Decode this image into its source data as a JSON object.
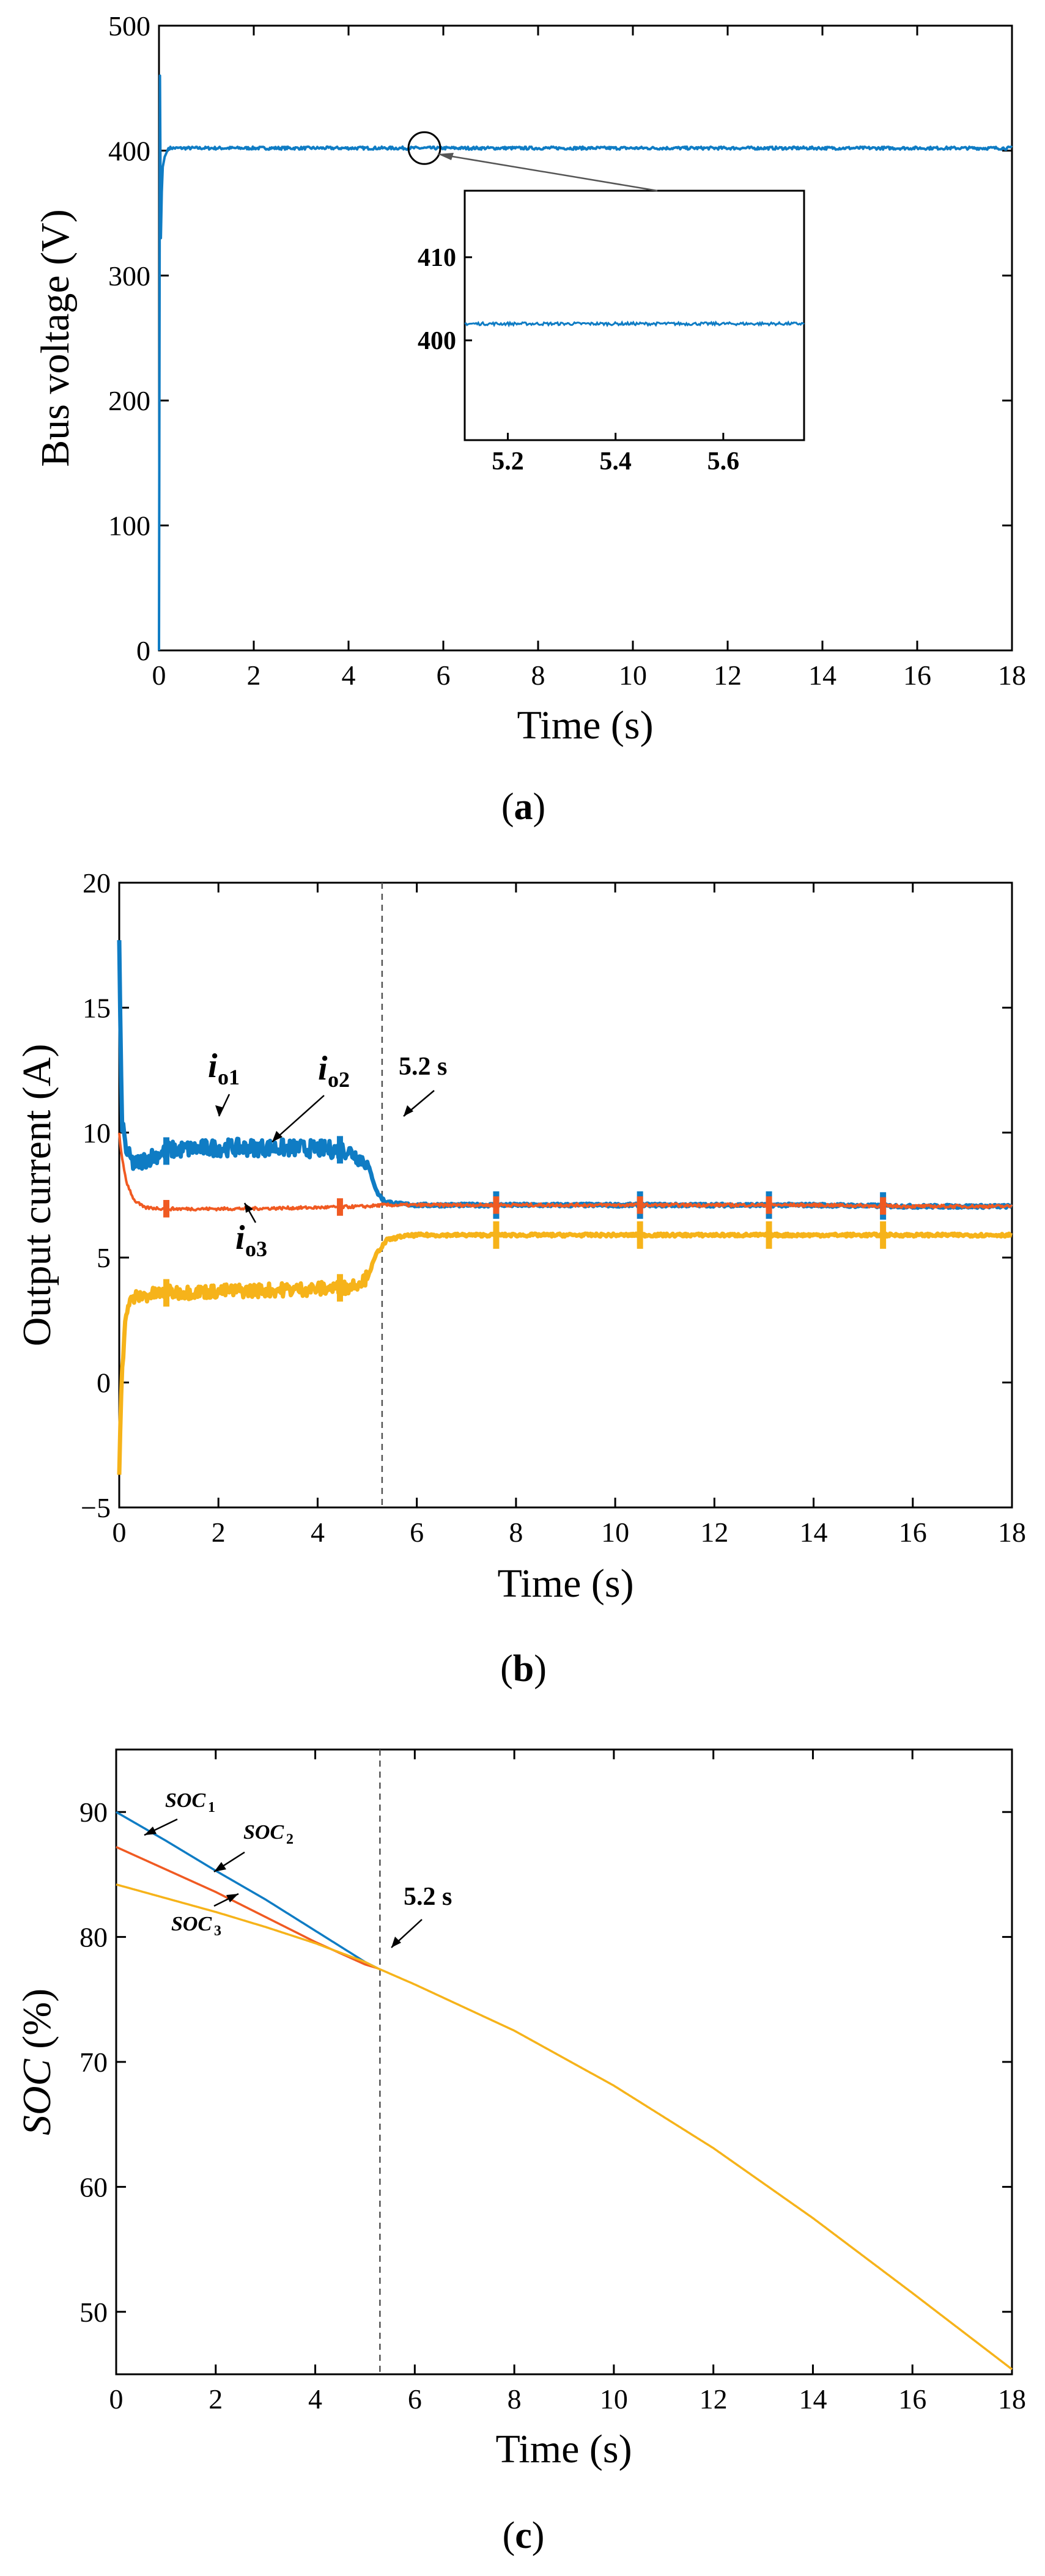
{
  "colors": {
    "blue": "#0f7cc4",
    "orange": "#f05a22",
    "yellow": "#f6b31a",
    "axis": "#000000",
    "dashed": "#555555"
  },
  "chart_data": [
    {
      "type": "line",
      "panel_label": "(a)",
      "xlabel": "Time (s)",
      "ylabel": "Bus voltage (V)",
      "xlim": [
        0,
        18
      ],
      "ylim": [
        0,
        500
      ],
      "xticks": [
        0,
        2,
        4,
        6,
        8,
        10,
        12,
        14,
        16,
        18
      ],
      "yticks": [
        0,
        100,
        200,
        300,
        400,
        500
      ],
      "series": [
        {
          "x": [
            0,
            0.02,
            0.04,
            0.07,
            0.12,
            0.2,
            0.5,
            1,
            5,
            10,
            18
          ],
          "y": [
            0,
            460,
            330,
            385,
            395,
            402,
            402,
            402,
            402,
            402,
            402
          ]
        }
      ],
      "inset": {
        "xlim": [
          5.12,
          5.75
        ],
        "ylim": [
          388,
          418
        ],
        "xticks": [
          5.2,
          5.4,
          5.6
        ],
        "yticks": [
          400,
          410
        ],
        "value": 402,
        "zoom_point": {
          "x": 5.6,
          "y": 402
        }
      }
    },
    {
      "type": "line",
      "panel_label": "(b)",
      "xlabel": "Time (s)",
      "ylabel": "Output current (A)",
      "xlim": [
        0,
        18
      ],
      "ylim": [
        -5,
        20
      ],
      "xticks": [
        0,
        2,
        4,
        6,
        8,
        10,
        12,
        14,
        16,
        18
      ],
      "yticks": [
        -5,
        0,
        5,
        10,
        15,
        20
      ],
      "vline": 5.3,
      "annotations": {
        "i1": "i",
        "i1_sub": "o1",
        "i2": "i",
        "i2_sub": "o2",
        "i3": "i",
        "i3_sub": "o3",
        "time": "5.2 s"
      },
      "series": [
        {
          "x": [
            0,
            0.05,
            0.15,
            0.3,
            0.6,
            1,
            2,
            3,
            4,
            4.6,
            5,
            5.2,
            5.35,
            5.6,
            6,
            8,
            10,
            12,
            14,
            16,
            18
          ],
          "y": [
            17.5,
            10.5,
            9.2,
            8.7,
            9.0,
            9.3,
            9.4,
            9.4,
            9.35,
            9.3,
            8.8,
            7.6,
            7.25,
            7.15,
            7.1,
            7.1,
            7.1,
            7.1,
            7.1,
            7.05,
            7.05
          ]
        },
        {
          "x": [
            0,
            0.05,
            0.15,
            0.3,
            0.5,
            1,
            2,
            3,
            4,
            5,
            5.3,
            6,
            8,
            10,
            12,
            14,
            16,
            18
          ],
          "y": [
            10.0,
            9.0,
            8.0,
            7.3,
            7.0,
            6.95,
            6.95,
            6.97,
            7.0,
            7.05,
            7.1,
            7.1,
            7.1,
            7.1,
            7.1,
            7.1,
            7.05,
            7.05
          ]
        },
        {
          "x": [
            0,
            0.05,
            0.15,
            0.3,
            0.6,
            1,
            2,
            3,
            4,
            4.6,
            5,
            5.2,
            5.4,
            5.7,
            6,
            8,
            10,
            12,
            14,
            16,
            18
          ],
          "y": [
            -3.5,
            0.5,
            3.0,
            3.4,
            3.5,
            3.6,
            3.65,
            3.7,
            3.75,
            3.8,
            4.2,
            5.2,
            5.7,
            5.85,
            5.9,
            5.9,
            5.9,
            5.9,
            5.9,
            5.9,
            5.9
          ]
        }
      ]
    },
    {
      "type": "line",
      "panel_label": "(c)",
      "xlabel": "Time (s)",
      "ylabel_main": "SOC",
      "ylabel_unit": " (%)",
      "xlim": [
        0,
        18
      ],
      "ylim": [
        45,
        95
      ],
      "xticks": [
        0,
        2,
        4,
        6,
        8,
        10,
        12,
        14,
        16,
        18
      ],
      "yticks": [
        50,
        60,
        70,
        80,
        90
      ],
      "vline": 5.3,
      "annotations": {
        "s1": "SOC",
        "s1_sub": "1",
        "s2": "SOC",
        "s2_sub": "2",
        "s3": "SOC",
        "s3_sub": "3",
        "time": "5.2 s"
      },
      "series": [
        {
          "x": [
            0,
            1,
            2,
            3,
            4,
            5,
            5.25
          ],
          "y": [
            90.0,
            87.7,
            85.3,
            83.0,
            80.5,
            78.0,
            77.5
          ]
        },
        {
          "x": [
            0,
            1,
            2,
            3,
            4,
            5,
            5.25
          ],
          "y": [
            87.2,
            85.4,
            83.6,
            81.6,
            79.6,
            77.8,
            77.5
          ]
        },
        {
          "x": [
            0,
            1,
            2,
            3,
            4,
            5,
            5.25,
            6,
            8,
            10,
            12,
            14,
            16,
            18
          ],
          "y": [
            84.2,
            83.1,
            82.0,
            80.8,
            79.5,
            78.0,
            77.5,
            76.2,
            72.5,
            68.1,
            63.1,
            57.5,
            51.5,
            45.4
          ]
        }
      ]
    }
  ]
}
